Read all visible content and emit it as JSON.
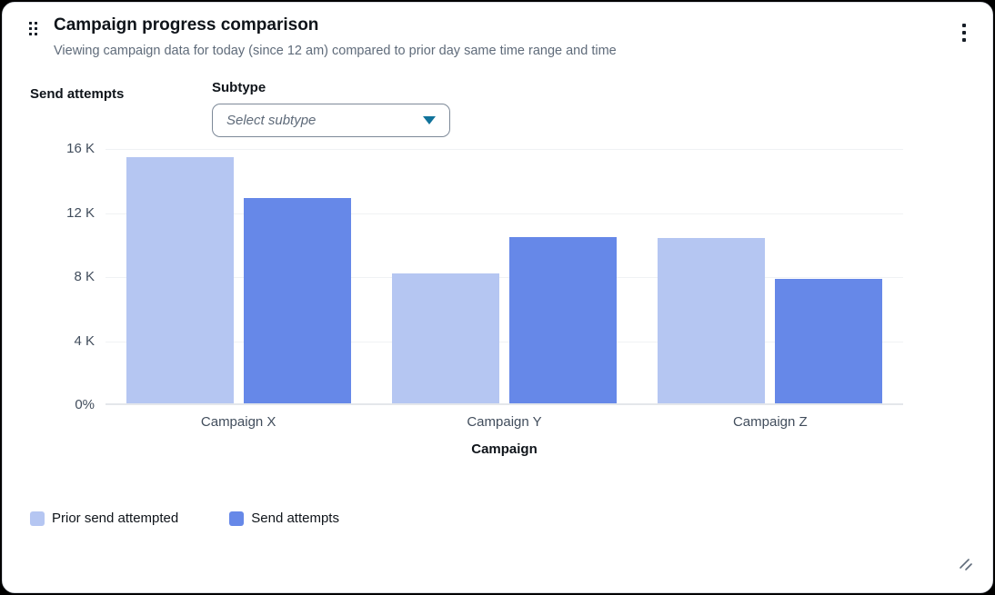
{
  "widget": {
    "title": "Campaign progress comparison",
    "subtitle": "Viewing campaign data for today (since 12 am) compared to prior day same time range and time"
  },
  "controls": {
    "subtype_label": "Subtype",
    "subtype_placeholder": "Select subtype"
  },
  "icons": {
    "drag_handle": "grid-dots",
    "menu": "kebab-vertical-dots",
    "dropdown_caret": "triangle-down",
    "resize": "diagonal-lines"
  },
  "colors": {
    "prior_series": "#b5c6f2",
    "current_series": "#6688e8",
    "caret": "#11739b",
    "title_text": "#0f141a",
    "secondary_text": "#5f6b7a",
    "gridline": "#f0f2f4"
  },
  "chart_data": {
    "type": "bar",
    "title": "Campaign progress comparison",
    "categories": [
      "Campaign X",
      "Campaign Y",
      "Campaign Z"
    ],
    "series": [
      {
        "name": "Prior send attempted",
        "color": "#b5c6f2",
        "values": [
          15400,
          8100,
          10300
        ]
      },
      {
        "name": "Send attempts",
        "color": "#6688e8",
        "values": [
          12800,
          10400,
          7800
        ]
      }
    ],
    "xlabel": "Campaign",
    "ylabel": "Send attempts",
    "ylim": [
      0,
      16000
    ],
    "y_ticks": [
      {
        "label": "0%",
        "value": 0
      },
      {
        "label": "4 K",
        "value": 4000
      },
      {
        "label": "8 K",
        "value": 8000
      },
      {
        "label": "12 K",
        "value": 12000
      },
      {
        "label": "16 K",
        "value": 16000
      }
    ],
    "grid": true,
    "legend_position": "bottom-left"
  }
}
